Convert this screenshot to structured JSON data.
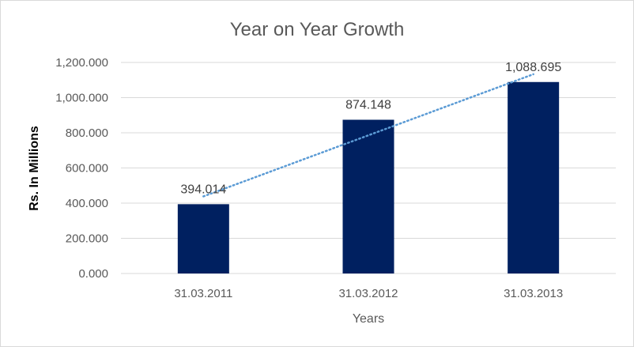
{
  "chart_data": {
    "type": "bar",
    "title": "Year on Year Growth",
    "xlabel": "Years",
    "ylabel": "Rs. In Millions",
    "categories": [
      "31.03.2011",
      "31.03.2012",
      "31.03.2013"
    ],
    "values": [
      394.014,
      874.148,
      1088.695
    ],
    "value_labels": [
      "394.014",
      "874.148",
      "1,088.695"
    ],
    "ylim": [
      0,
      1200
    ],
    "yticks": [
      0,
      200,
      400,
      600,
      800,
      1000,
      1200
    ],
    "ytick_labels": [
      "0.000",
      "200.000",
      "400.000",
      "600.000",
      "800.000",
      "1,000.000",
      "1,200.000"
    ],
    "grid": true,
    "legend": "none",
    "trendline": {
      "type": "linear",
      "style": "dotted"
    },
    "colors": {
      "bar": "#002060",
      "trendline": "#5b9bd5"
    }
  }
}
